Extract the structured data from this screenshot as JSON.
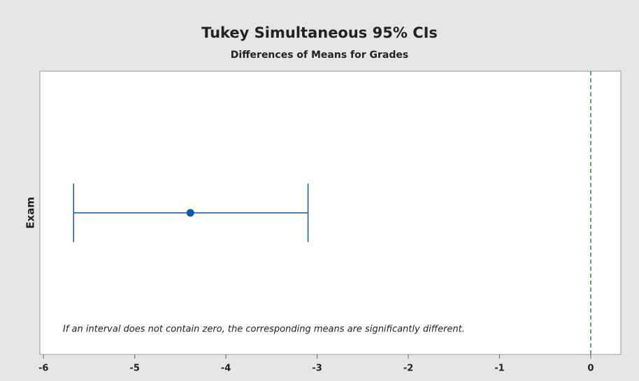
{
  "chart_data": {
    "type": "interval",
    "title": "Tukey Simultaneous 95% CIs",
    "subtitle": "Differences of Means for Grades",
    "categories": [
      "Exam"
    ],
    "values": [
      -4.39
    ],
    "lower": [
      -5.67
    ],
    "upper": [
      -3.1
    ],
    "color": "#0b5aa8",
    "reference_line": 0,
    "reference_color": "#2e8b3e",
    "xlim": [
      -6.04,
      0.33
    ],
    "xticks": [
      -6,
      -5,
      -4,
      -3,
      -2,
      -1,
      0
    ],
    "annotation": "If an interval does not contain zero, the corresponding means are significantly different."
  }
}
